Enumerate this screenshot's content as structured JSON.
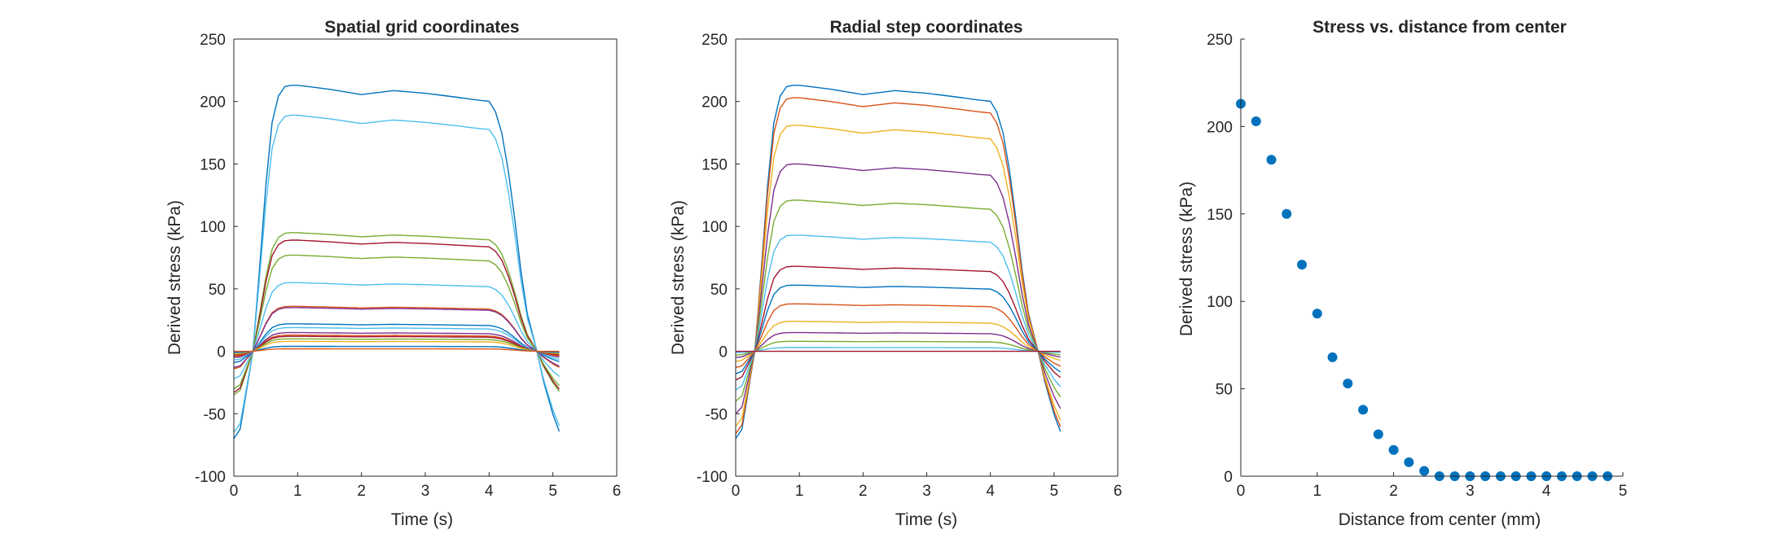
{
  "colors": {
    "axis": "#262626",
    "series": [
      "#0072BD",
      "#D95319",
      "#EDB120",
      "#7E2F8E",
      "#77AC30",
      "#4DBEEE",
      "#A2142F"
    ],
    "marker": "#0072BD"
  },
  "chart_data": [
    {
      "type": "line",
      "title": "Spatial grid coordinates",
      "xlabel": "Time (s)",
      "ylabel": "Derived stress (kPa)",
      "xlim": [
        0,
        6
      ],
      "ylim": [
        -100,
        250
      ],
      "xticks": [
        0,
        1,
        2,
        3,
        4,
        5,
        6
      ],
      "yticks": [
        -100,
        -50,
        0,
        50,
        100,
        150,
        200,
        250
      ],
      "grid": false,
      "legend": "none",
      "series": [
        {
          "color": "#0072BD",
          "plateau": 213,
          "tail": -70
        },
        {
          "color": "#4DBEEE",
          "plateau": 189,
          "tail": -65
        },
        {
          "color": "#77AC30",
          "plateau": 95,
          "tail": -35
        },
        {
          "color": "#A2142F",
          "plateau": 89,
          "tail": -33
        },
        {
          "color": "#77AC30",
          "plateau": 77,
          "tail": -30
        },
        {
          "color": "#4DBEEE",
          "plateau": 55,
          "tail": -22
        },
        {
          "color": "#D95319",
          "plateau": 36,
          "tail": -14
        },
        {
          "color": "#7E2F8E",
          "plateau": 35,
          "tail": -13
        },
        {
          "color": "#0072BD",
          "plateau": 22,
          "tail": -9
        },
        {
          "color": "#4DBEEE",
          "plateau": 19,
          "tail": -7
        },
        {
          "color": "#7E2F8E",
          "plateau": 15,
          "tail": -5
        },
        {
          "color": "#D95319",
          "plateau": 13,
          "tail": -4
        },
        {
          "color": "#A2142F",
          "plateau": 12,
          "tail": -3
        },
        {
          "color": "#77AC30",
          "plateau": 10,
          "tail": -2
        },
        {
          "color": "#EDB120",
          "plateau": 8,
          "tail": -2
        },
        {
          "color": "#0072BD",
          "plateau": 4,
          "tail": -1
        },
        {
          "color": "#D95319",
          "plateau": 2,
          "tail": 0
        }
      ]
    },
    {
      "type": "line",
      "title": "Radial step coordinates",
      "xlabel": "Time (s)",
      "ylabel": "Derived stress (kPa)",
      "xlim": [
        0,
        6
      ],
      "ylim": [
        -100,
        250
      ],
      "xticks": [
        0,
        1,
        2,
        3,
        4,
        5,
        6
      ],
      "yticks": [
        -100,
        -50,
        0,
        50,
        100,
        150,
        200,
        250
      ],
      "grid": false,
      "legend": "none",
      "series": [
        {
          "color": "#0072BD",
          "plateau": 213,
          "tail": -70
        },
        {
          "color": "#D95319",
          "plateau": 203,
          "tail": -66
        },
        {
          "color": "#EDB120",
          "plateau": 181,
          "tail": -60
        },
        {
          "color": "#7E2F8E",
          "plateau": 150,
          "tail": -50
        },
        {
          "color": "#77AC30",
          "plateau": 121,
          "tail": -40
        },
        {
          "color": "#4DBEEE",
          "plateau": 93,
          "tail": -31
        },
        {
          "color": "#A2142F",
          "plateau": 68,
          "tail": -23
        },
        {
          "color": "#0072BD",
          "plateau": 53,
          "tail": -18
        },
        {
          "color": "#D95319",
          "plateau": 38,
          "tail": -13
        },
        {
          "color": "#EDB120",
          "plateau": 24,
          "tail": -8
        },
        {
          "color": "#7E2F8E",
          "plateau": 15,
          "tail": -5
        },
        {
          "color": "#77AC30",
          "plateau": 8,
          "tail": -3
        },
        {
          "color": "#4DBEEE",
          "plateau": 3,
          "tail": -1
        },
        {
          "color": "#A2142F",
          "plateau": 0,
          "tail": 0
        }
      ]
    },
    {
      "type": "scatter",
      "title": "Stress vs. distance from center",
      "xlabel": "Distance from center (mm)",
      "ylabel": "Derived stress (kPa)",
      "xlim": [
        0,
        5
      ],
      "ylim": [
        0,
        250
      ],
      "xticks": [
        0,
        1,
        2,
        3,
        4,
        5
      ],
      "yticks": [
        0,
        50,
        100,
        150,
        200,
        250
      ],
      "grid": false,
      "legend": "none",
      "x": [
        0,
        0.2,
        0.4,
        0.6,
        0.8,
        1.0,
        1.2,
        1.4,
        1.6,
        1.8,
        2.0,
        2.2,
        2.4,
        2.6,
        2.8,
        3.0,
        3.2,
        3.4,
        3.6,
        3.8,
        4.0,
        4.2,
        4.4,
        4.6,
        4.8
      ],
      "y": [
        213,
        203,
        181,
        150,
        121,
        93,
        68,
        53,
        38,
        24,
        15,
        8,
        3,
        0,
        0,
        0,
        0,
        0,
        0,
        0,
        0,
        0,
        0,
        0,
        0
      ]
    }
  ]
}
